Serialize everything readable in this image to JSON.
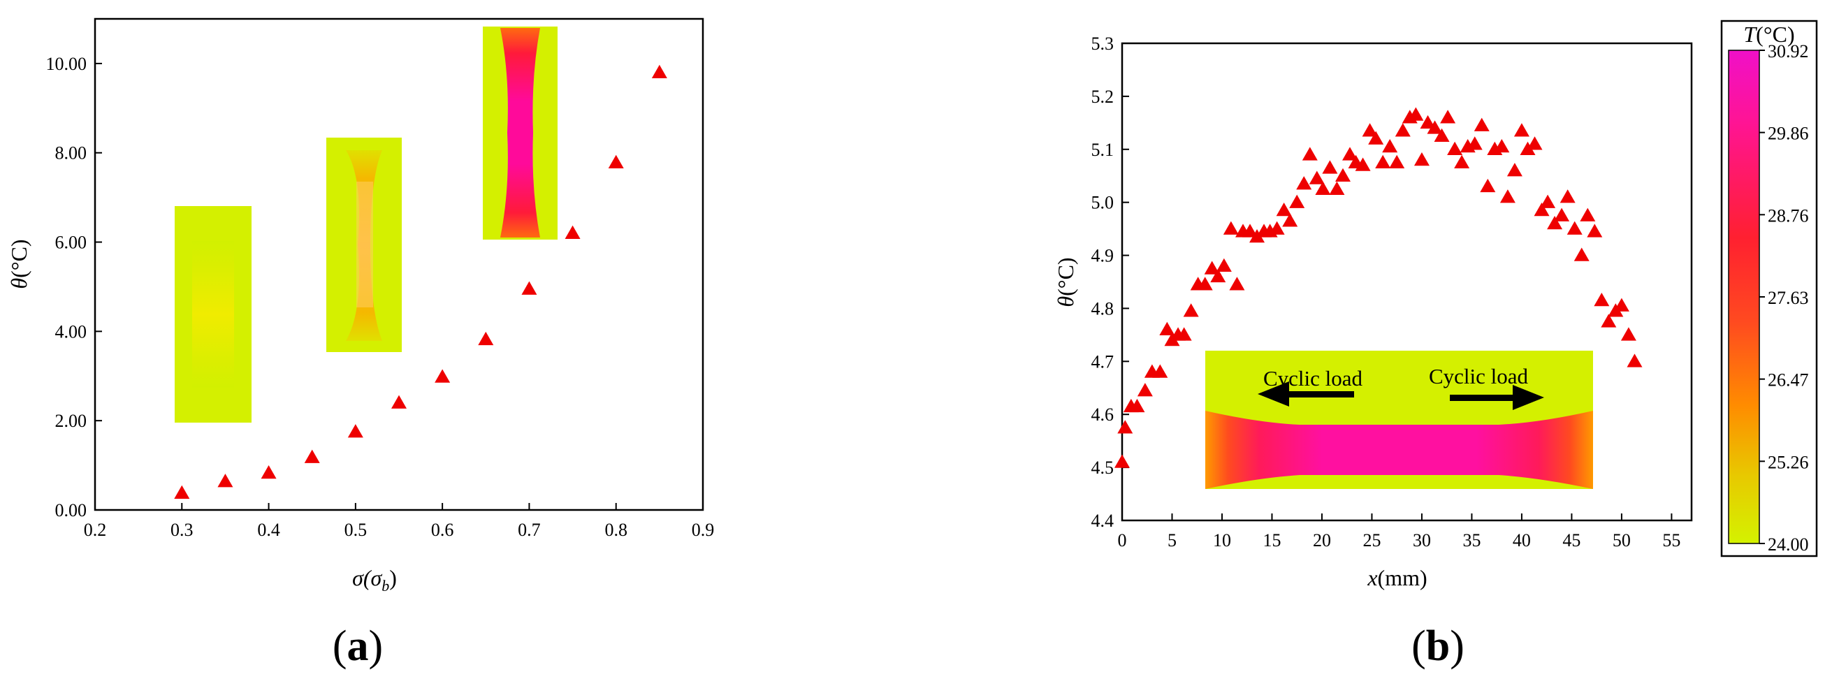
{
  "chart_data": [
    {
      "type": "scatter",
      "panel_label": "a",
      "xlabel_main": "σ(σ",
      "xlabel_sub": "b",
      "xlabel_end": ")",
      "ylabel_sym": "θ",
      "ylabel_unit": "(°C)",
      "xlim": [
        0.2,
        0.9
      ],
      "ylim": [
        0,
        11
      ],
      "xticks": [
        "0.2",
        "0.3",
        "0.4",
        "0.5",
        "0.6",
        "0.7",
        "0.8",
        "0.9"
      ],
      "xtick_values": [
        0.2,
        0.3,
        0.4,
        0.5,
        0.6,
        0.7,
        0.8,
        0.9
      ],
      "yticks": [
        "0.00",
        "2.00",
        "4.00",
        "6.00",
        "8.00",
        "10.00"
      ],
      "ytick_values": [
        0,
        2,
        4,
        6,
        8,
        10
      ],
      "marker": "triangle",
      "color": "#ee0000",
      "grid": false,
      "x": [
        0.3,
        0.35,
        0.4,
        0.45,
        0.5,
        0.55,
        0.6,
        0.65,
        0.7,
        0.75,
        0.8,
        0.85
      ],
      "y": [
        0.38,
        0.64,
        0.83,
        1.18,
        1.75,
        2.4,
        2.98,
        3.82,
        4.95,
        6.2,
        7.78,
        9.8
      ],
      "specimen_insets": 3
    },
    {
      "type": "scatter",
      "panel_label": "b",
      "xlabel_sym": "x",
      "xlabel_unit": "(mm)",
      "ylabel_sym": "θ",
      "ylabel_unit": "(°C)",
      "xlim": [
        0,
        57
      ],
      "ylim": [
        4.4,
        5.3
      ],
      "xticks": [
        "0",
        "5",
        "10",
        "15",
        "20",
        "25",
        "30",
        "35",
        "40",
        "45",
        "50",
        "55"
      ],
      "xtick_values": [
        0,
        5,
        10,
        15,
        20,
        25,
        30,
        35,
        40,
        45,
        50,
        55
      ],
      "yticks": [
        "4.4",
        "4.5",
        "4.6",
        "4.7",
        "4.8",
        "4.9",
        "5.0",
        "5.1",
        "5.2",
        "5.3"
      ],
      "ytick_values": [
        4.4,
        4.5,
        4.6,
        4.7,
        4.8,
        4.9,
        5.0,
        5.1,
        5.2,
        5.3
      ],
      "marker": "triangle",
      "color": "#ee0000",
      "grid": false,
      "x": [
        0.0,
        0.3,
        0.9,
        1.5,
        2.3,
        3.0,
        3.8,
        4.5,
        5.0,
        5.6,
        6.2,
        6.9,
        7.6,
        8.3,
        9.0,
        9.6,
        10.2,
        10.9,
        11.5,
        12.1,
        12.8,
        13.5,
        14.2,
        14.8,
        15.5,
        16.2,
        16.8,
        17.5,
        18.2,
        18.8,
        19.5,
        20.1,
        20.8,
        21.5,
        22.1,
        22.8,
        23.4,
        24.1,
        24.8,
        25.4,
        26.1,
        26.8,
        27.5,
        28.1,
        28.8,
        29.4,
        30.0,
        30.6,
        31.3,
        32.0,
        32.6,
        33.3,
        34.0,
        34.6,
        35.3,
        36.0,
        36.6,
        37.3,
        38.0,
        38.6,
        39.3,
        40.0,
        40.6,
        41.3,
        42.0,
        42.6,
        43.3,
        44.0,
        44.6,
        45.3,
        46.0,
        46.6,
        47.3,
        48.0,
        48.7,
        49.4,
        50.0,
        50.7,
        51.3
      ],
      "y": [
        4.51,
        4.575,
        4.615,
        4.615,
        4.645,
        4.68,
        4.68,
        4.76,
        4.74,
        4.75,
        4.75,
        4.795,
        4.845,
        4.845,
        4.875,
        4.86,
        4.88,
        4.95,
        4.845,
        4.945,
        4.945,
        4.935,
        4.945,
        4.945,
        4.95,
        4.985,
        4.965,
        5.0,
        5.035,
        5.09,
        5.045,
        5.025,
        5.065,
        5.025,
        5.05,
        5.09,
        5.075,
        5.07,
        5.135,
        5.12,
        5.075,
        5.105,
        5.075,
        5.135,
        5.16,
        5.165,
        5.08,
        5.15,
        5.14,
        5.125,
        5.16,
        5.1,
        5.075,
        5.105,
        5.11,
        5.145,
        5.03,
        5.1,
        5.105,
        5.01,
        5.06,
        5.135,
        5.1,
        5.11,
        4.985,
        5.0,
        4.96,
        4.975,
        5.01,
        4.95,
        4.9,
        4.975,
        4.945,
        4.815,
        4.775,
        4.795,
        4.805,
        4.75,
        4.7
      ],
      "inset_labels": [
        "Cyclic load",
        "Cyclic load"
      ]
    }
  ],
  "colorbar": {
    "title_sym": "T",
    "title_unit": "(°C)",
    "ticks": [
      "30.92",
      "29.86",
      "28.76",
      "27.63",
      "26.47",
      "25.26",
      "24.00"
    ],
    "colors": {
      "top": "#f500c8",
      "upper": "#ff1a8c",
      "mid": "#ff2020",
      "lower": "#ff8a00",
      "bottom": "#d8f200"
    }
  }
}
